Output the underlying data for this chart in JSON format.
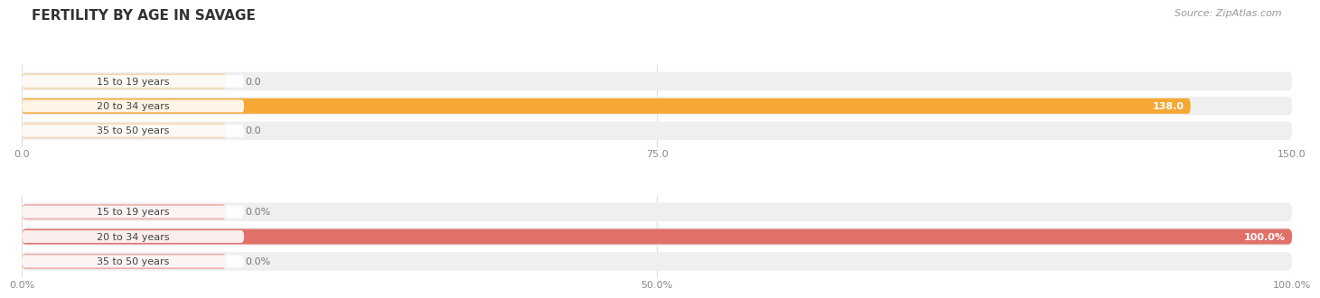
{
  "title": "FERTILITY BY AGE IN SAVAGE",
  "source_text": "Source: ZipAtlas.com",
  "top_chart": {
    "categories": [
      "15 to 19 years",
      "20 to 34 years",
      "35 to 50 years"
    ],
    "values": [
      0.0,
      138.0,
      0.0
    ],
    "bar_color_active": "#f5a833",
    "bar_color_inactive": "#f5d5a8",
    "row_bg_color": "#efefef",
    "xlim": [
      0,
      150.0
    ],
    "xticks": [
      0.0,
      75.0,
      150.0
    ],
    "xtick_labels": [
      "0.0",
      "75.0",
      "150.0"
    ],
    "value_labels": [
      "0.0",
      "138.0",
      "0.0"
    ]
  },
  "bottom_chart": {
    "categories": [
      "15 to 19 years",
      "20 to 34 years",
      "35 to 50 years"
    ],
    "values": [
      0.0,
      100.0,
      0.0
    ],
    "bar_color_active": "#e07068",
    "bar_color_inactive": "#eeaaa5",
    "row_bg_color": "#efefef",
    "xlim": [
      0,
      100.0
    ],
    "xticks": [
      0.0,
      50.0,
      100.0
    ],
    "xtick_labels": [
      "0.0%",
      "50.0%",
      "100.0%"
    ],
    "value_labels": [
      "0.0%",
      "100.0%",
      "0.0%"
    ]
  },
  "fig_bg": "#ffffff",
  "plot_bg": "#ffffff",
  "title_fontsize": 11,
  "label_fontsize": 8,
  "tick_fontsize": 8,
  "source_fontsize": 8,
  "value_fontsize": 8
}
